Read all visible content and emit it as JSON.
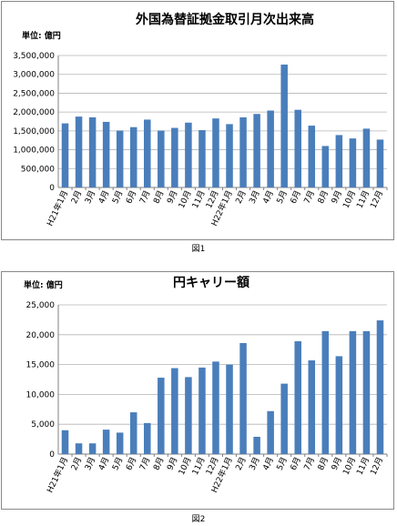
{
  "chart_data": [
    {
      "type": "bar",
      "title": "外国為替証拠金取引月次出来高",
      "unit_label": "単位: 億円",
      "caption": "図1",
      "categories": [
        "H21年1月",
        "2月",
        "3月",
        "4月",
        "5月",
        "6月",
        "7月",
        "8月",
        "9月",
        "10月",
        "11月",
        "12月",
        "H22年1月",
        "2月",
        "3月",
        "4月",
        "5月",
        "6月",
        "7月",
        "8月",
        "9月",
        "10月",
        "11月",
        "12月"
      ],
      "values": [
        1700000,
        1880000,
        1860000,
        1740000,
        1510000,
        1600000,
        1800000,
        1510000,
        1580000,
        1720000,
        1520000,
        1830000,
        1680000,
        1860000,
        1950000,
        2040000,
        3260000,
        2060000,
        1640000,
        1100000,
        1390000,
        1300000,
        1560000,
        1270000
      ],
      "ylim": [
        0,
        3500000
      ],
      "yticks": [
        "0",
        "500,000",
        "1,000,000",
        "1,500,000",
        "2,000,000",
        "2,500,000",
        "3,000,000",
        "3,500,000"
      ],
      "ytick_values": [
        0,
        500000,
        1000000,
        1500000,
        2000000,
        2500000,
        3000000,
        3500000
      ],
      "grid": true,
      "bar_color": "#4a7ebb"
    },
    {
      "type": "bar",
      "title": "円キャリー額",
      "unit_label": "単位: 億円",
      "caption": "図2",
      "categories": [
        "H21年1月",
        "2月",
        "3月",
        "4月",
        "5月",
        "6月",
        "7月",
        "8月",
        "9月",
        "10月",
        "11月",
        "12月",
        "H22年1月",
        "2月",
        "3月",
        "4月",
        "5月",
        "6月",
        "7月",
        "8月",
        "9月",
        "10月",
        "11月",
        "12月"
      ],
      "values": [
        4000,
        1800,
        1800,
        4100,
        3600,
        7000,
        5200,
        12800,
        14400,
        12900,
        14500,
        15500,
        15000,
        18600,
        2900,
        7200,
        11800,
        18900,
        15700,
        20600,
        16400,
        20600,
        20600,
        22400
      ],
      "ylim": [
        0,
        25000
      ],
      "yticks": [
        "0",
        "5,000",
        "10,000",
        "15,000",
        "20,000",
        "25,000"
      ],
      "ytick_values": [
        0,
        5000,
        10000,
        15000,
        20000,
        25000
      ],
      "grid": true,
      "bar_color": "#4a7ebb"
    }
  ]
}
